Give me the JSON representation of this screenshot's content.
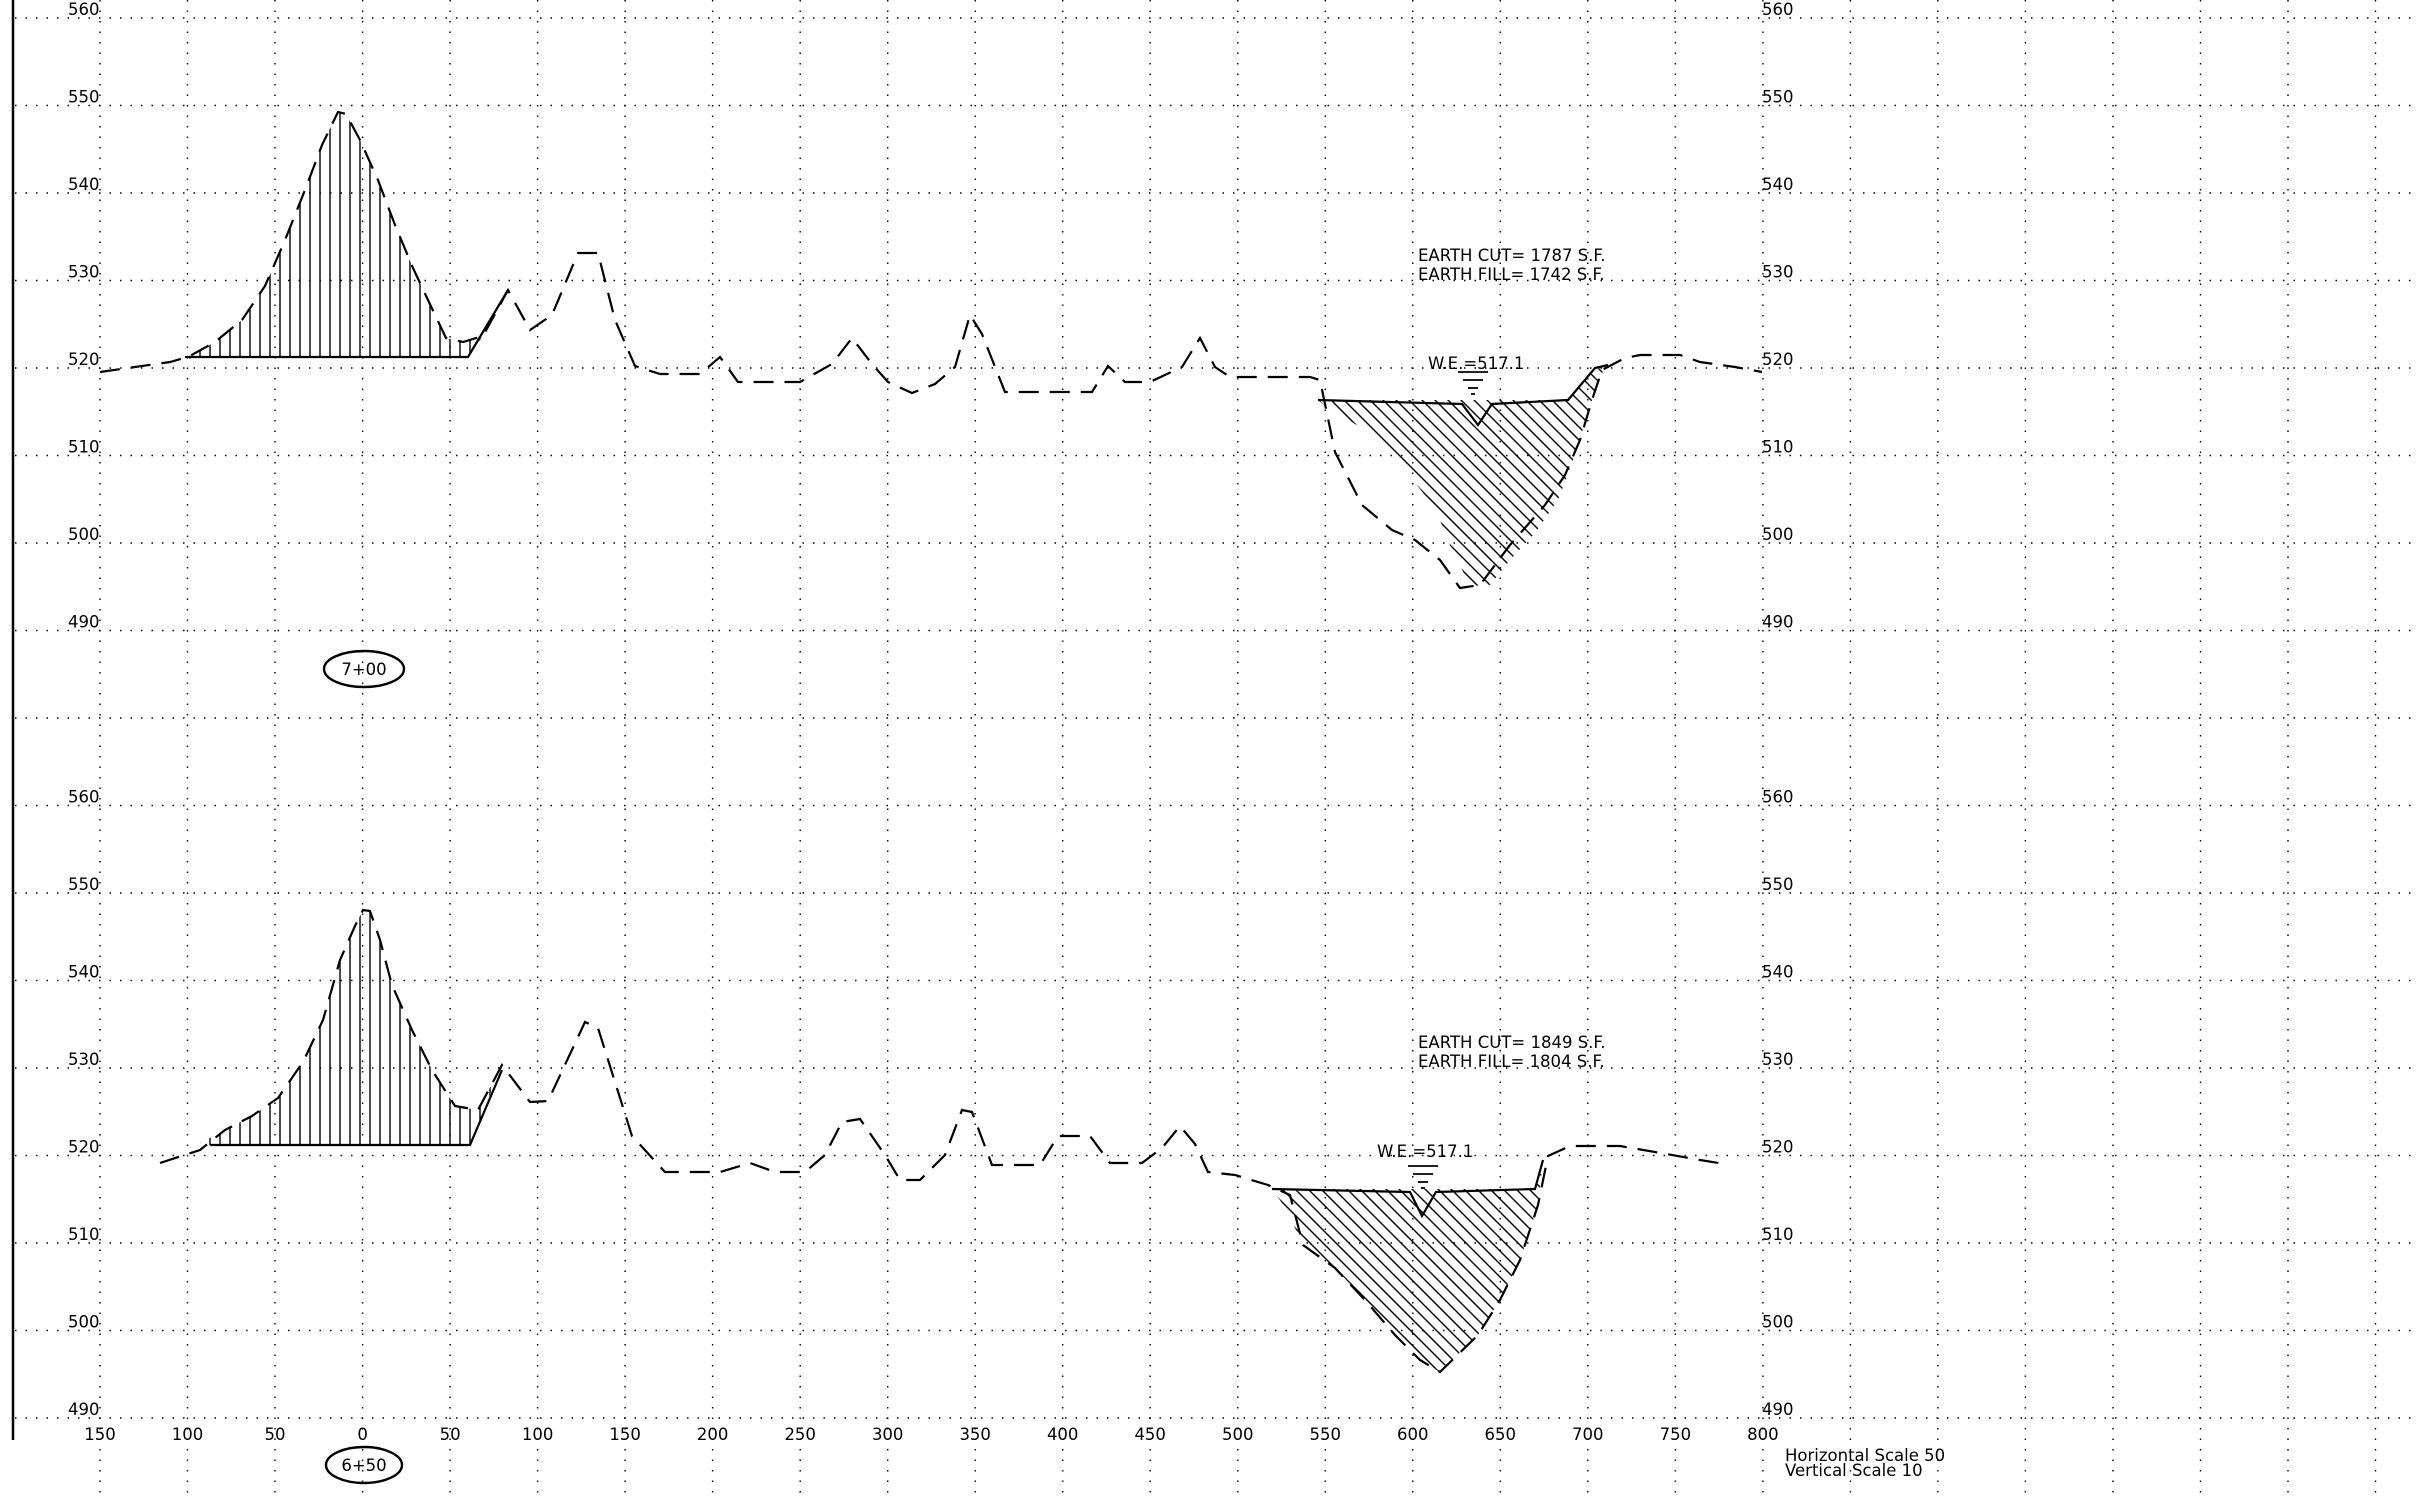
{
  "scales": {
    "horizontal": "Horizontal  Scale  50",
    "vertical": "Vertical  Scale  10"
  },
  "offset_tick_labels": [
    "150",
    "100",
    "50",
    "0",
    "50",
    "100",
    "150",
    "200",
    "250",
    "300",
    "350",
    "400",
    "450",
    "500",
    "550",
    "600",
    "650",
    "700",
    "750",
    "800"
  ],
  "sections": [
    {
      "station": "7+00",
      "elevation_labels": [
        "560",
        "550",
        "540",
        "530",
        "520",
        "510",
        "500",
        "490"
      ],
      "earth_cut": "EARTH  CUT=  1787  S.F.",
      "earth_fill": "EARTH  FILL=  1742  S.F.",
      "water_elevation": "W.E.=517.1"
    },
    {
      "station": "6+50",
      "elevation_labels": [
        "560",
        "550",
        "540",
        "530",
        "520",
        "510",
        "500",
        "490"
      ],
      "earth_cut": "EARTH  CUT=  1849  S.F.",
      "earth_fill": "EARTH  FILL=  1804  S.F.",
      "water_elevation": "W.E.=517.1"
    }
  ]
}
